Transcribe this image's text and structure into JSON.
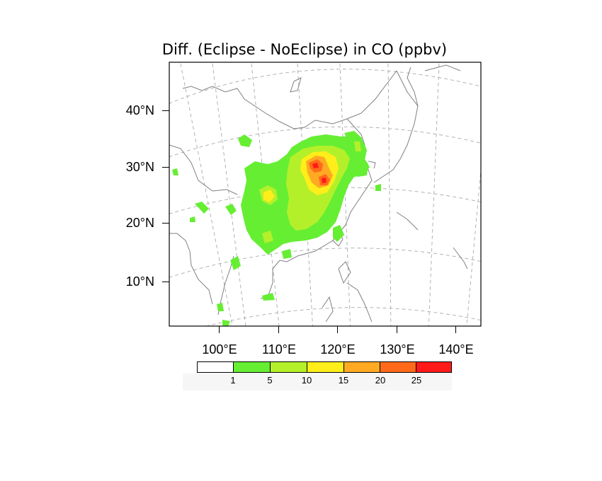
{
  "title": "Diff. (Eclipse - NoEclipse) in CO (ppbv)",
  "lat_labels": [
    "40°N",
    "30°N",
    "20°N",
    "10°N"
  ],
  "lon_labels": [
    "100°E",
    "110°E",
    "120°E",
    "130°E",
    "140°E"
  ],
  "colorbar": {
    "labels": [
      "1",
      "5",
      "10",
      "15",
      "20",
      "25"
    ],
    "colors": [
      "#ffffff",
      "#66ee33",
      "#b4f02a",
      "#ffee1a",
      "#ffaa22",
      "#ff6a1a",
      "#ff1a1a"
    ]
  },
  "colors": {
    "land_lines": "#808080",
    "grid_lines": "#aaaaaa",
    "frame": "#000000"
  }
}
